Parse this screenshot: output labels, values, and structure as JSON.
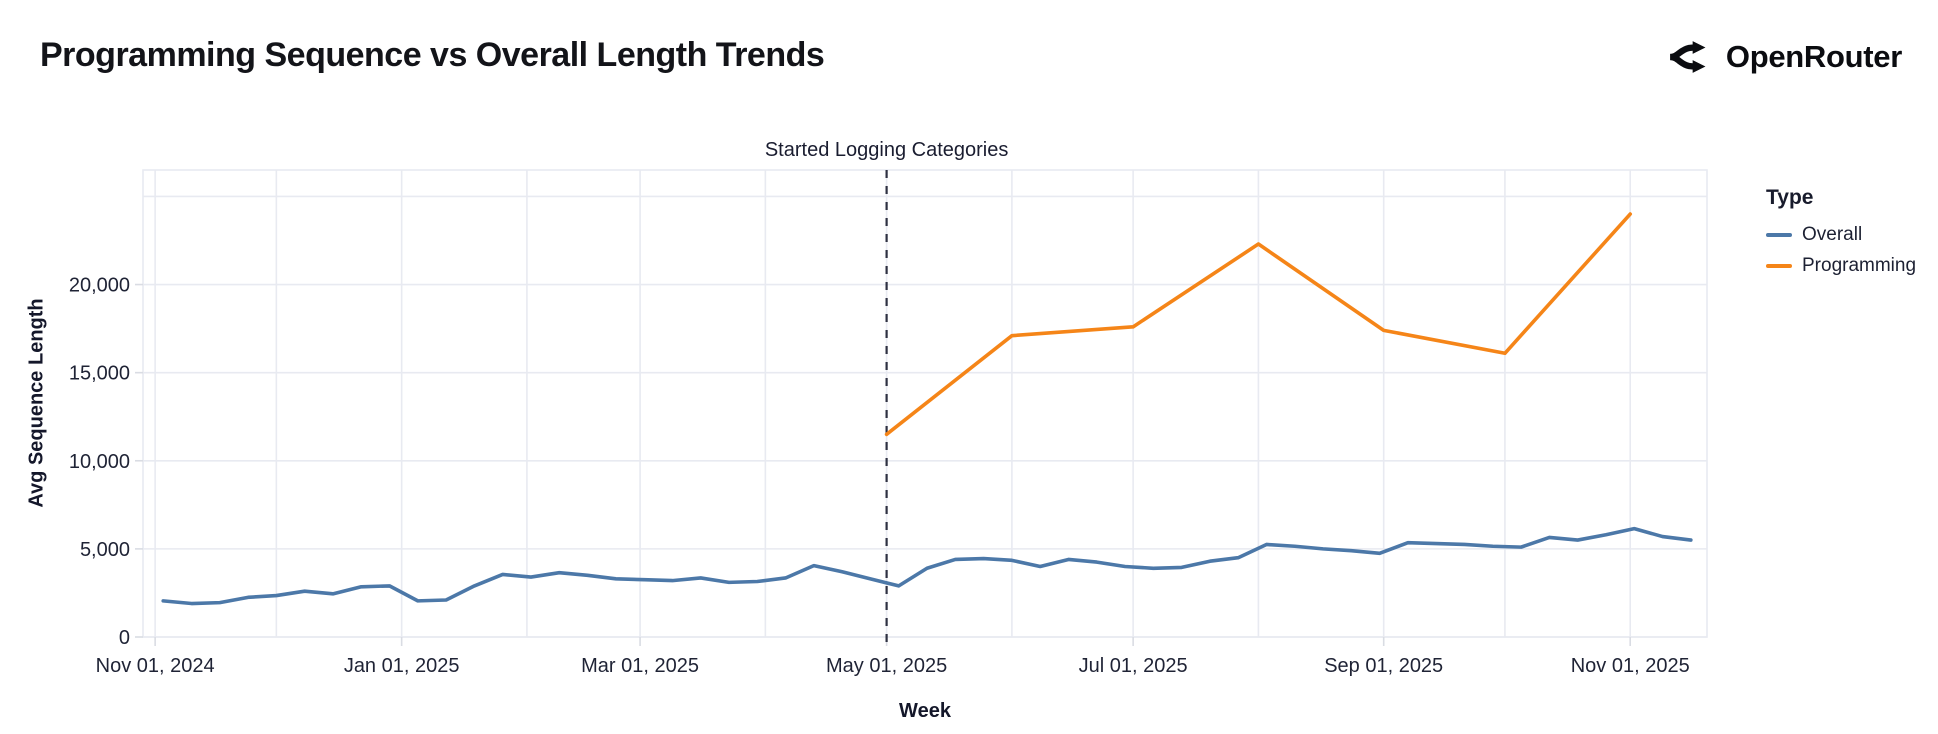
{
  "header": {
    "title": "Programming Sequence vs Overall Length Trends",
    "brand": "OpenRouter"
  },
  "annotation": {
    "label": "Started Logging Categories",
    "date": "2025-05-01"
  },
  "legend": {
    "title": "Type",
    "entries": [
      {
        "label": "Overall",
        "color": "#4c78a8"
      },
      {
        "label": "Programming",
        "color": "#f58518"
      }
    ]
  },
  "axes": {
    "x": {
      "title": "Week",
      "ticks": [
        {
          "date": "2024-11-01",
          "label": "Nov 01, 2024"
        },
        {
          "date": "2025-01-01",
          "label": "Jan 01, 2025"
        },
        {
          "date": "2025-03-01",
          "label": "Mar 01, 2025"
        },
        {
          "date": "2025-05-01",
          "label": "May 01, 2025"
        },
        {
          "date": "2025-07-01",
          "label": "Jul 01, 2025"
        },
        {
          "date": "2025-09-01",
          "label": "Sep 01, 2025"
        },
        {
          "date": "2025-11-01",
          "label": "Nov 01, 2025"
        }
      ]
    },
    "y": {
      "title": "Avg Sequence Length",
      "ticks": [
        {
          "value": 0,
          "label": "0"
        },
        {
          "value": 5000,
          "label": "5,000"
        },
        {
          "value": 10000,
          "label": "10,000"
        },
        {
          "value": 15000,
          "label": "15,000"
        },
        {
          "value": 20000,
          "label": "20,000"
        }
      ]
    }
  },
  "chart_data": {
    "type": "line",
    "title": "Programming Sequence vs Overall Length Trends",
    "xlabel": "Week",
    "ylabel": "Avg Sequence Length",
    "x_domain": [
      "2024-10-29",
      "2025-11-20"
    ],
    "y_domain": [
      0,
      26500
    ],
    "grid": true,
    "y_grid_step": 5000,
    "x_grid": "monthly",
    "legend_position": "right",
    "annotation": {
      "label": "Started Logging Categories",
      "date": "2025-05-01",
      "style": "dashed-vertical-rule"
    },
    "colors": {
      "overall": "#4c78a8",
      "programming": "#f58518",
      "gridline": "#e8eaf1",
      "dashed_rule": "#2e3142",
      "text": "#1f2335"
    },
    "series": [
      {
        "name": "Overall",
        "color": "#4c78a8",
        "points": [
          [
            "2024-11-03",
            2050
          ],
          [
            "2024-11-10",
            1900
          ],
          [
            "2024-11-17",
            1950
          ],
          [
            "2024-11-24",
            2250
          ],
          [
            "2024-12-01",
            2350
          ],
          [
            "2024-12-08",
            2600
          ],
          [
            "2024-12-15",
            2450
          ],
          [
            "2024-12-22",
            2850
          ],
          [
            "2024-12-29",
            2900
          ],
          [
            "2025-01-05",
            2050
          ],
          [
            "2025-01-12",
            2100
          ],
          [
            "2025-01-19",
            2900
          ],
          [
            "2025-01-26",
            3550
          ],
          [
            "2025-02-02",
            3400
          ],
          [
            "2025-02-09",
            3650
          ],
          [
            "2025-02-16",
            3500
          ],
          [
            "2025-02-23",
            3300
          ],
          [
            "2025-03-02",
            3250
          ],
          [
            "2025-03-09",
            3200
          ],
          [
            "2025-03-16",
            3350
          ],
          [
            "2025-03-23",
            3100
          ],
          [
            "2025-03-30",
            3150
          ],
          [
            "2025-04-06",
            3350
          ],
          [
            "2025-04-13",
            4050
          ],
          [
            "2025-04-20",
            3700
          ],
          [
            "2025-04-27",
            3300
          ],
          [
            "2025-05-04",
            2900
          ],
          [
            "2025-05-11",
            3900
          ],
          [
            "2025-05-18",
            4400
          ],
          [
            "2025-05-25",
            4450
          ],
          [
            "2025-06-01",
            4350
          ],
          [
            "2025-06-08",
            4000
          ],
          [
            "2025-06-15",
            4400
          ],
          [
            "2025-06-22",
            4250
          ],
          [
            "2025-06-29",
            4000
          ],
          [
            "2025-07-06",
            3900
          ],
          [
            "2025-07-13",
            3950
          ],
          [
            "2025-07-20",
            4300
          ],
          [
            "2025-07-27",
            4500
          ],
          [
            "2025-08-03",
            5250
          ],
          [
            "2025-08-10",
            5150
          ],
          [
            "2025-08-17",
            5000
          ],
          [
            "2025-08-24",
            4900
          ],
          [
            "2025-08-31",
            4750
          ],
          [
            "2025-09-07",
            5350
          ],
          [
            "2025-09-14",
            5300
          ],
          [
            "2025-09-21",
            5250
          ],
          [
            "2025-09-28",
            5150
          ],
          [
            "2025-10-05",
            5100
          ],
          [
            "2025-10-12",
            5650
          ],
          [
            "2025-10-19",
            5500
          ],
          [
            "2025-10-26",
            5800
          ],
          [
            "2025-11-02",
            6150
          ],
          [
            "2025-11-09",
            5700
          ],
          [
            "2025-11-16",
            5500
          ]
        ]
      },
      {
        "name": "Programming",
        "color": "#f58518",
        "points": [
          [
            "2025-05-01",
            11500
          ],
          [
            "2025-06-01",
            17100
          ],
          [
            "2025-07-01",
            17600
          ],
          [
            "2025-08-01",
            22300
          ],
          [
            "2025-09-01",
            17400
          ],
          [
            "2025-10-01",
            16100
          ],
          [
            "2025-11-01",
            24000
          ]
        ]
      }
    ]
  }
}
